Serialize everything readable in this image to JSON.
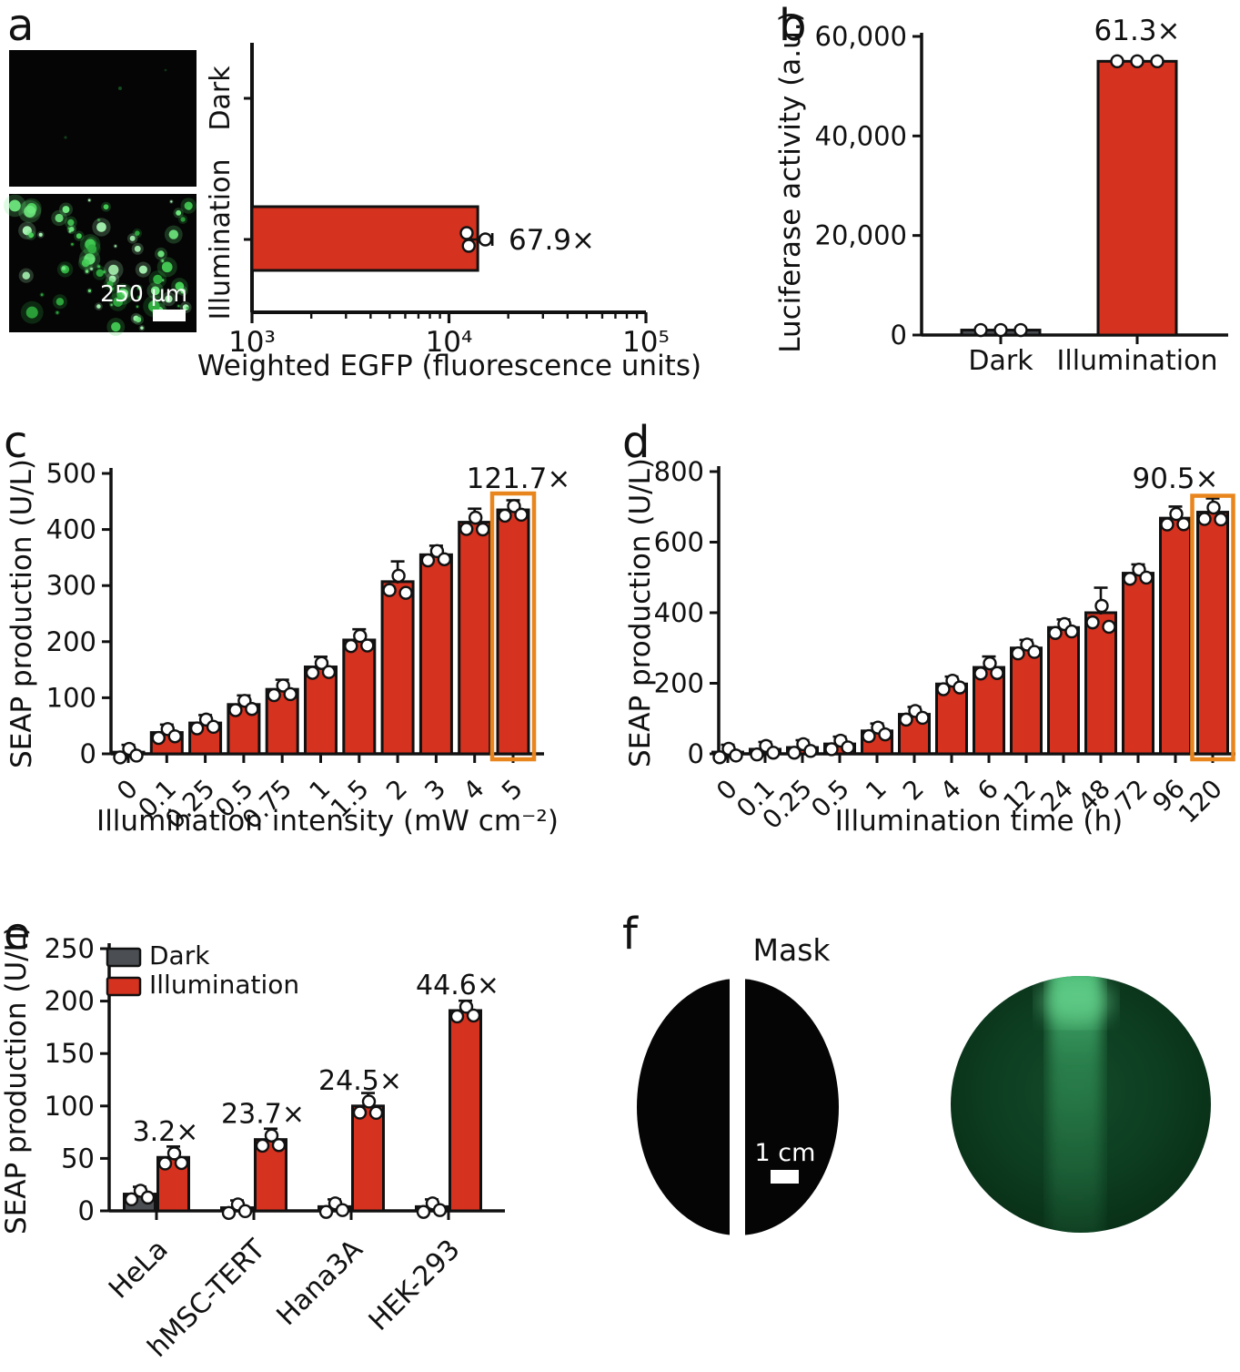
{
  "panels": {
    "a": {
      "label": "a",
      "microscopy_scale_bar_label": "250 µm"
    },
    "b": {
      "label": "b"
    },
    "c": {
      "label": "c"
    },
    "d": {
      "label": "d"
    },
    "e": {
      "label": "e"
    },
    "f": {
      "label": "f",
      "mask_title": "Mask",
      "scale_bar_label": "1 cm"
    }
  },
  "colors": {
    "bar_red": "#d5321f",
    "bar_dark": "#4b4f53",
    "highlight_orange": "#e8851c",
    "axis_black": "#111111",
    "fluor_green": "#46cf57",
    "fluor_dark_green": "#0c3b20",
    "point_fill": "#ffffff"
  },
  "chart_data": [
    {
      "panel": "a",
      "type": "bar",
      "orientation": "horizontal",
      "categories": [
        "Dark",
        "Illumination"
      ],
      "values": [
        0,
        14000
      ],
      "points": [
        [],
        [
          12300,
          12600,
          15300
        ]
      ],
      "error_range_illumination": [
        12900,
        16600
      ],
      "annotation": "67.9×",
      "xlabel": "Weighted EGFP (fluorescence units)",
      "xscale": "log",
      "xlim": [
        1000,
        100000
      ],
      "xtick_labels": [
        "10³",
        "10⁴",
        "10⁵"
      ]
    },
    {
      "panel": "b",
      "type": "bar",
      "categories": [
        "Dark",
        "Illumination"
      ],
      "values": [
        1000,
        55000
      ],
      "annotation": "61.3×",
      "annotation_over": "Illumination",
      "ylabel": "Luciferase activity (a.u.)",
      "ylim": [
        0,
        60000
      ],
      "ytick_labels": [
        "0",
        "20,000",
        "40,000",
        "60,000"
      ],
      "bar_color_keys": [
        "bar_dark",
        "bar_red"
      ]
    },
    {
      "panel": "c",
      "type": "bar",
      "categories": [
        "0",
        "0.1",
        "0.25",
        "0.5",
        "0.75",
        "1",
        "1.5",
        "2",
        "3",
        "4",
        "5"
      ],
      "values": [
        3,
        38,
        55,
        88,
        115,
        155,
        203,
        307,
        355,
        413,
        435
      ],
      "errors": [
        3,
        6,
        6,
        8,
        9,
        10,
        11,
        28,
        8,
        16,
        9
      ],
      "annotation": "121.7×",
      "highlight_category": "5",
      "ylabel": "SEAP production (U/L)",
      "xlabel": "Illumination intensity (mW cm⁻²)",
      "ylim": [
        0,
        500
      ],
      "ytick_step": 100
    },
    {
      "panel": "d",
      "type": "bar",
      "categories": [
        "0",
        "0.1",
        "0.25",
        "0.5",
        "1",
        "2",
        "4",
        "6",
        "12",
        "24",
        "48",
        "72",
        "96",
        "120"
      ],
      "values": [
        5,
        13,
        18,
        28,
        65,
        112,
        198,
        245,
        300,
        358,
        400,
        512,
        668,
        685
      ],
      "errors": [
        3,
        4,
        4,
        6,
        8,
        8,
        8,
        18,
        10,
        10,
        58,
        12,
        20,
        26
      ],
      "annotation": "90.5×",
      "highlight_category": "120",
      "ylabel": "SEAP production (U/L)",
      "xlabel": "Illumination time (h)",
      "ylim": [
        0,
        800
      ],
      "ytick_step": 200
    },
    {
      "panel": "e",
      "type": "grouped-bar",
      "categories": [
        "HeLa",
        "hMSC-TERT",
        "Hana3A",
        "HEK-293"
      ],
      "series": [
        {
          "name": "Dark",
          "color_key": "bar_dark",
          "values": [
            16,
            3,
            4,
            4
          ],
          "errors": [
            2,
            1,
            1,
            1
          ]
        },
        {
          "name": "Illumination",
          "color_key": "bar_red",
          "values": [
            51,
            68,
            100,
            191
          ],
          "errors": [
            6,
            6,
            8,
            5
          ]
        }
      ],
      "fold_annotations": [
        "3.2×",
        "23.7×",
        "24.5×",
        "44.6×"
      ],
      "legend": [
        "Dark",
        "Illumination"
      ],
      "ylabel": "SEAP production (U/L)",
      "ylim": [
        0,
        250
      ],
      "ytick_step": 50
    },
    {
      "panel": "f",
      "type": "image-pair",
      "mask_title": "Mask",
      "scale_bar_label": "1 cm"
    }
  ]
}
